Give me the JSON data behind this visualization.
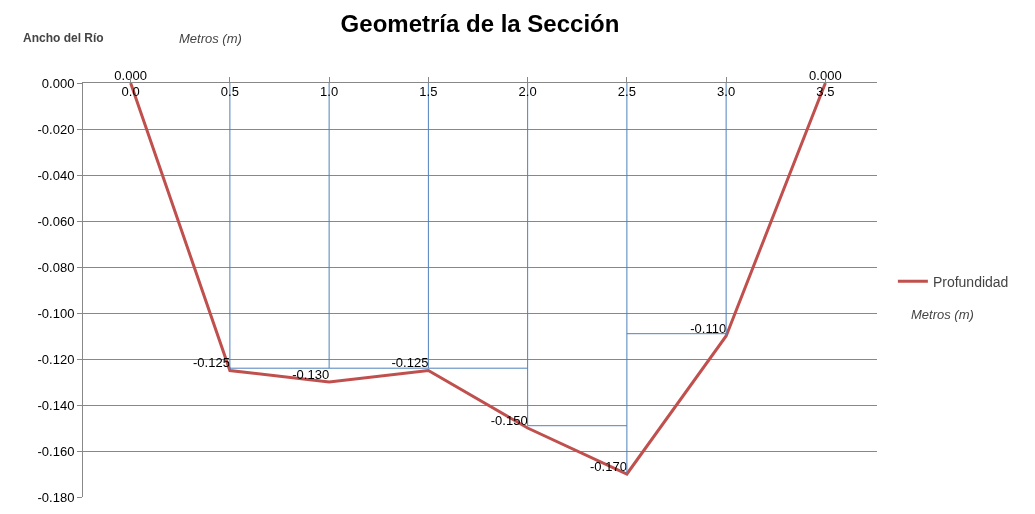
{
  "chart_data": {
    "type": "line",
    "title": "Geometría de la Sección",
    "xlabel": "Ancho del Río",
    "annotations": [
      "Metros (m)",
      "Metros (m)"
    ],
    "x": [
      0,
      0.5,
      1.0,
      1.5,
      2.0,
      2.5,
      3.0,
      3.5
    ],
    "series": [
      {
        "name": "Profundidad",
        "color": "#c0504d",
        "values": [
          0,
          -0.125,
          -0.13,
          -0.125,
          -0.15,
          -0.17,
          -0.11,
          0
        ],
        "value_labels": [
          "0.000",
          "-0.125",
          "-0.130",
          "-0.125",
          "-0.150",
          "-0.170",
          "-0.110",
          "0.000"
        ]
      },
      {
        "color": "#4f81bd",
        "x": [
          0.5,
          0.5,
          2.0,
          null,
          1.0,
          1.0,
          null,
          1.5,
          1.5,
          null,
          2.0,
          2.0,
          2.5,
          null,
          2.5,
          2.5,
          null,
          2.5,
          3.0,
          null,
          3.0,
          3.0
        ],
        "values": [
          0,
          -0.124,
          -0.124,
          null,
          0,
          -0.124,
          null,
          0,
          -0.124,
          null,
          0,
          -0.149,
          -0.149,
          null,
          0,
          -0.17,
          null,
          -0.109,
          -0.109,
          null,
          0,
          -0.11
        ]
      }
    ],
    "xlim": [
      -0.24,
      3.76
    ],
    "xticks": [
      {
        "value": 0,
        "label": "0.0"
      },
      {
        "value": 0.5,
        "label": "0.5"
      },
      {
        "value": 1,
        "label": "1.0"
      },
      {
        "value": 1.5,
        "label": "1.5"
      },
      {
        "value": 2,
        "label": "2.0"
      },
      {
        "value": 2.5,
        "label": "2.5"
      },
      {
        "value": 3,
        "label": "3.0"
      },
      {
        "value": 3.5,
        "label": "3.5"
      }
    ],
    "ylim": [
      -0.18,
      0
    ],
    "yticks": [
      {
        "value": 0,
        "label": "0.000"
      },
      {
        "value": -0.02,
        "label": "-0.020"
      },
      {
        "value": -0.04,
        "label": "-0.040"
      },
      {
        "value": -0.06,
        "label": "-0.060"
      },
      {
        "value": -0.08,
        "label": "-0.080"
      },
      {
        "value": -0.1,
        "label": "-0.100"
      },
      {
        "value": -0.12,
        "label": "-0.120"
      },
      {
        "value": -0.14,
        "label": "-0.140"
      },
      {
        "value": -0.16,
        "label": "-0.160"
      },
      {
        "value": -0.18,
        "label": "-0.180"
      }
    ],
    "grid": "y",
    "legend": "right",
    "marker": "none",
    "line_style": "solid"
  }
}
